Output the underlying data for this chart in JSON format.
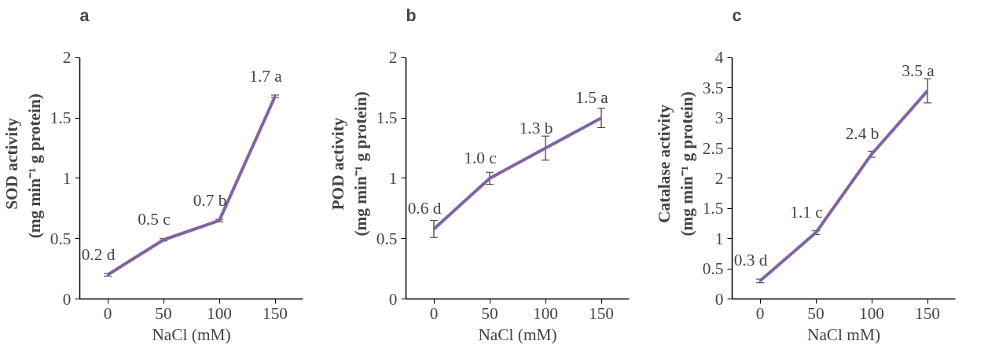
{
  "chart_data": [
    {
      "type": "line",
      "title": "a",
      "categories": [
        "0",
        "50",
        "100",
        "150"
      ],
      "xlabel": "NaCl (mM)",
      "ylabel": "SOD activity\n(mg  min⁻¹ g protein)",
      "ylim": [
        0,
        2
      ],
      "yticks": [
        0,
        0.5,
        1,
        1.5,
        2
      ],
      "series": [
        {
          "color": "#8064a2",
          "values": [
            0.2,
            0.49,
            0.65,
            1.68
          ],
          "errors": [
            0.01,
            0.01,
            0.01,
            0.01
          ],
          "value_labels": [
            "0.2 d",
            "0.5 c",
            "0.7 b",
            "1.7 a"
          ]
        }
      ]
    },
    {
      "type": "line",
      "title": "b",
      "categories": [
        "0",
        "50",
        "100",
        "150"
      ],
      "xlabel": "NaCl (mM)",
      "ylabel": "POD activity\n(mg min⁻¹ g protein)",
      "ylim": [
        0,
        2
      ],
      "yticks": [
        0,
        0.5,
        1,
        1.5,
        2
      ],
      "series": [
        {
          "color": "#8064a2",
          "values": [
            0.58,
            1.0,
            1.25,
            1.5
          ],
          "errors": [
            0.07,
            0.05,
            0.1,
            0.08
          ],
          "value_labels": [
            "0.6 d",
            "1.0 c",
            "1.3 b",
            "1.5 a"
          ]
        }
      ]
    },
    {
      "type": "line",
      "title": "c",
      "categories": [
        "0",
        "50",
        "100",
        "150"
      ],
      "xlabel": "NaCl mM)",
      "ylabel": "Catalase activity\n(mg min⁻¹ g protein)",
      "ylim": [
        0,
        4
      ],
      "yticks": [
        0,
        0.5,
        1,
        1.5,
        2,
        2.5,
        3,
        3.5,
        4
      ],
      "series": [
        {
          "color": "#8064a2",
          "values": [
            0.3,
            1.1,
            2.4,
            3.45
          ],
          "errors": [
            0.03,
            0.03,
            0.05,
            0.2
          ],
          "value_labels": [
            "0.3 d",
            "1.1 c",
            "2.4 b",
            "3.5 a"
          ]
        }
      ]
    }
  ]
}
